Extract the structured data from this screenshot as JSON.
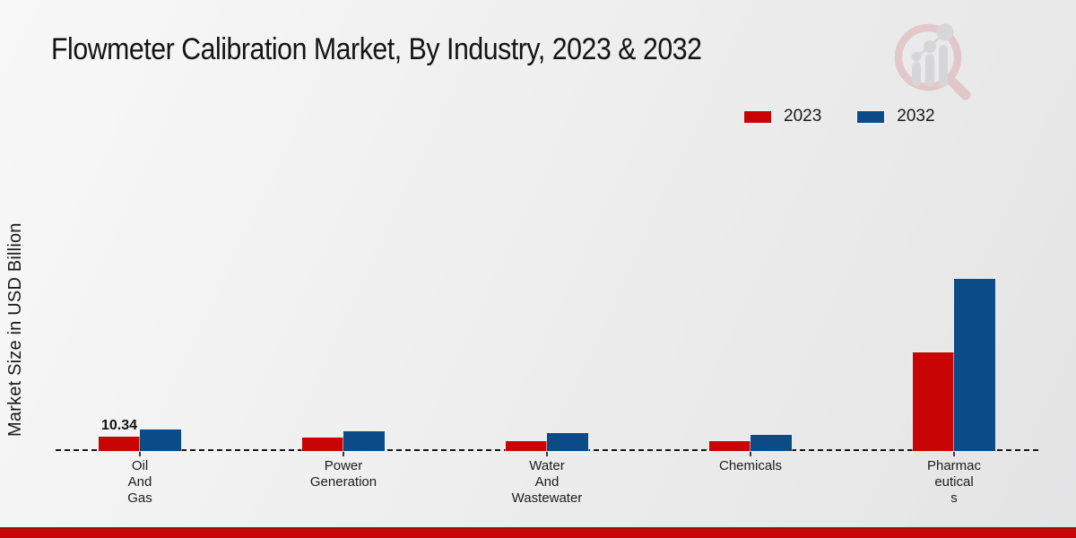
{
  "title": "Flowmeter Calibration Market, By Industry, 2023 & 2032",
  "ylabel": "Market Size in USD Billion",
  "legend": [
    {
      "label": "2023",
      "color": "#c80404"
    },
    {
      "label": "2032",
      "color": "#0a4b88"
    }
  ],
  "colors": {
    "series_2023": "#c80404",
    "series_2032": "#0a4b88",
    "baseline": "#161616",
    "bottom_band": "#c40707",
    "watermark_ring": "#dcacb2",
    "watermark_bars": "#c6c7cb"
  },
  "chart_data": {
    "type": "bar",
    "title": "Flowmeter Calibration Market, By Industry, 2023 & 2032",
    "ylabel": "Market Size in USD Billion",
    "xlabel": "",
    "categories": [
      "Oil And Gas",
      "Power Generation",
      "Water And Wastewater",
      "Chemicals",
      "Pharmaceuticals"
    ],
    "category_lines": [
      [
        "Oil",
        "And",
        "Gas"
      ],
      [
        "Power",
        "Generation"
      ],
      [
        "Water",
        "And",
        "Wastewater"
      ],
      [
        "Chemicals"
      ],
      [
        "Pharmac",
        "eutical",
        "s"
      ]
    ],
    "series": [
      {
        "name": "2023",
        "color": "#c80404",
        "values": [
          10.34,
          9.7,
          7.1,
          7.1,
          71.1
        ]
      },
      {
        "name": "2032",
        "color": "#0a4b88",
        "values": [
          15.5,
          14.2,
          12.9,
          11.6,
          124.1
        ]
      }
    ],
    "annotations": [
      {
        "series": "2023",
        "category": "Oil And Gas",
        "text": "10.34"
      }
    ],
    "ylim": [
      0,
      130
    ],
    "grid": false,
    "y_axis_ticks_visible": false,
    "baseline_style": "dashed",
    "legend_position": "top-right"
  }
}
